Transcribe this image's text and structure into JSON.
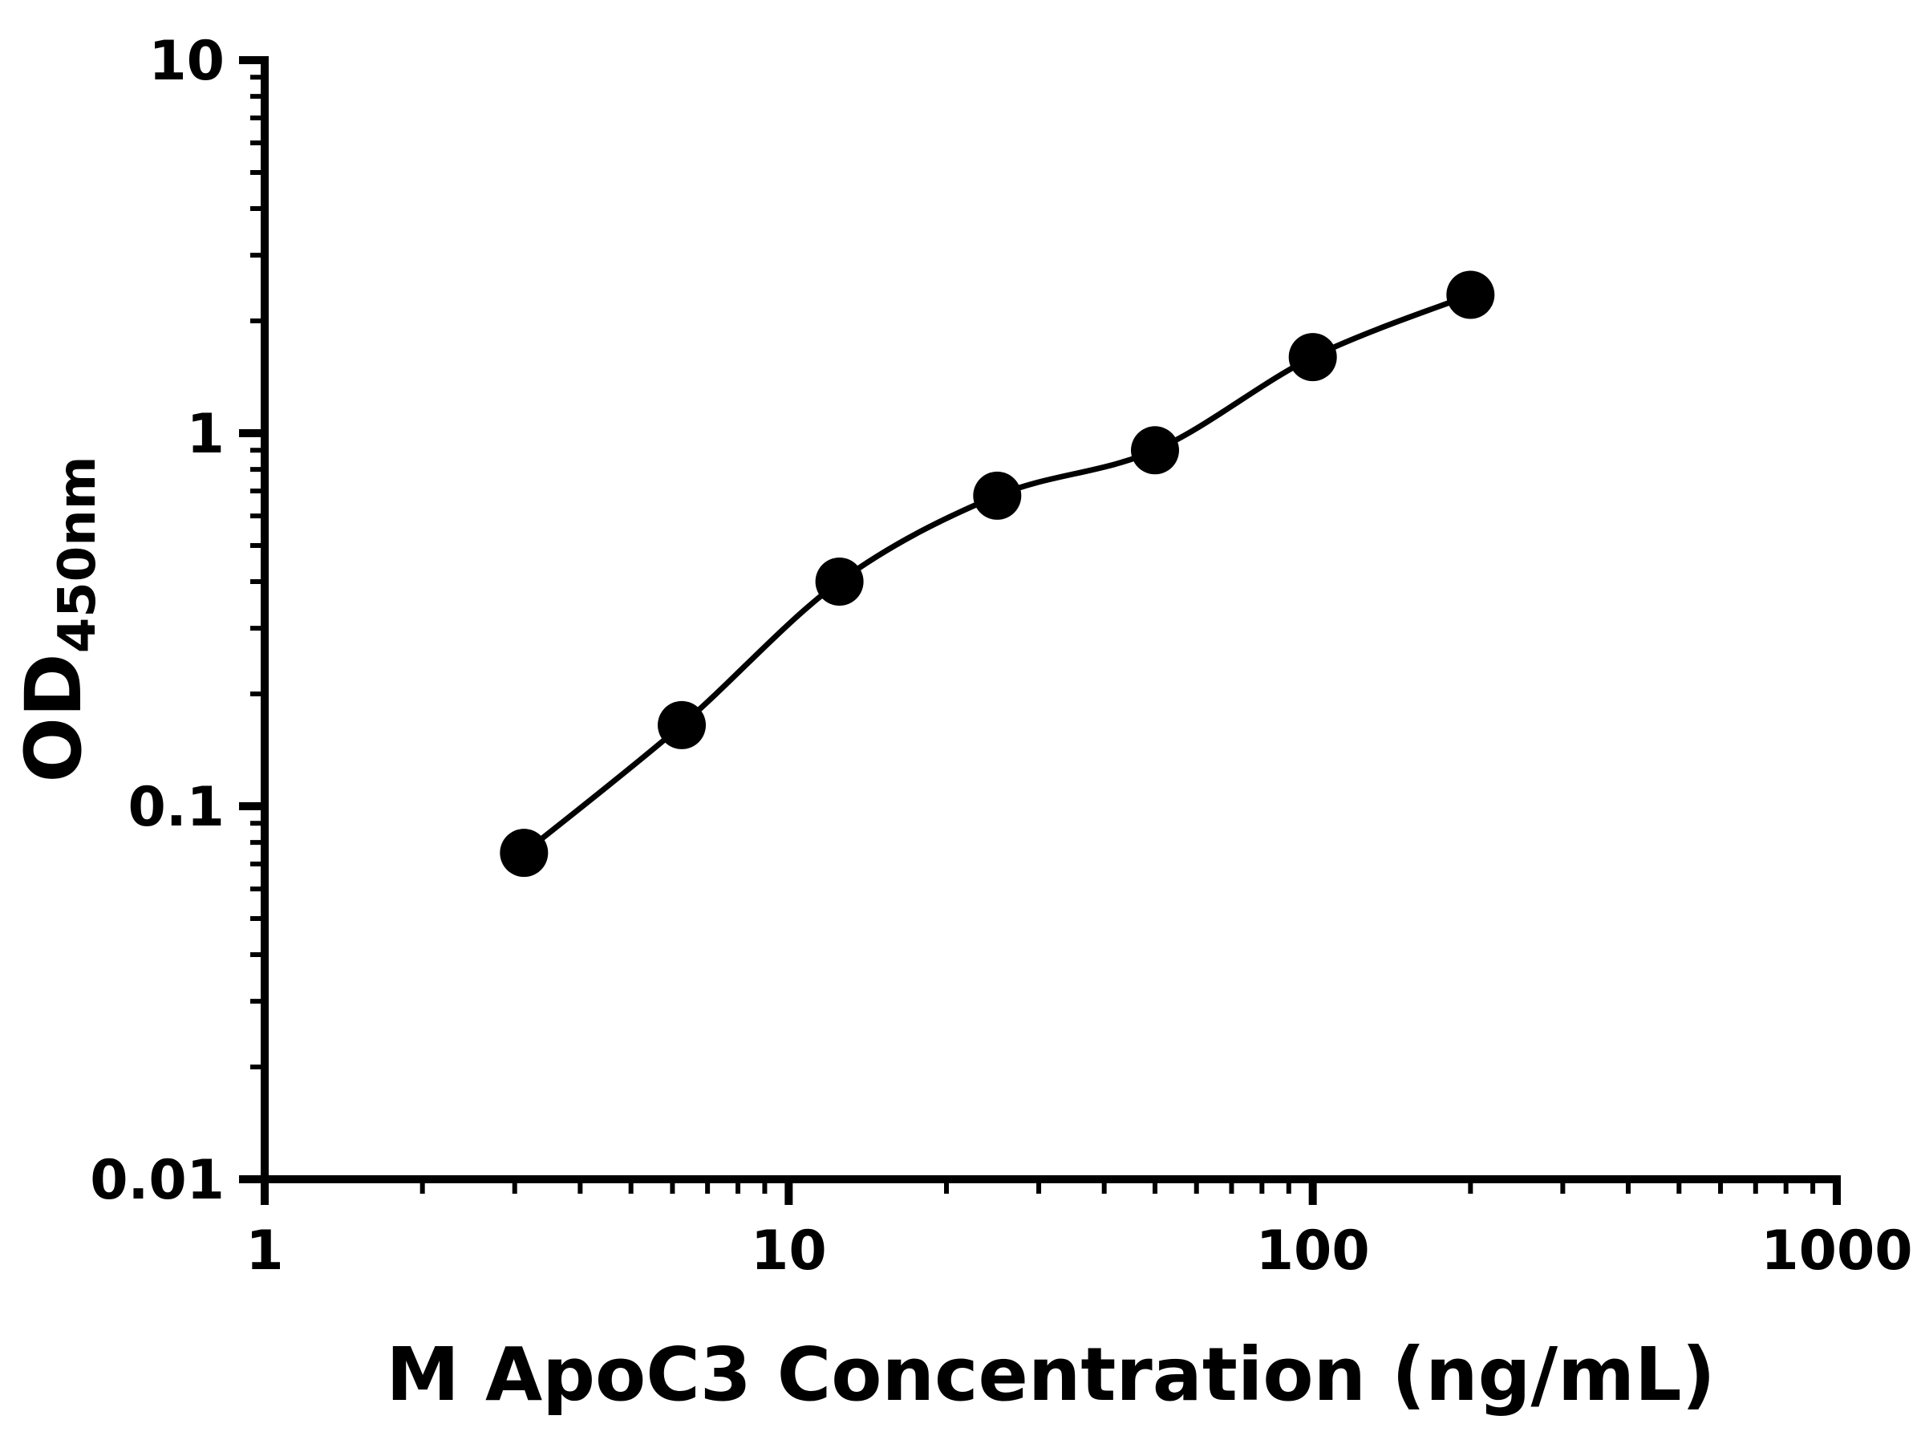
{
  "chart_data": {
    "type": "scatter",
    "title": "",
    "xlabel": "M ApoC3 Concentration (ng/mL)",
    "ylabel_main": "OD",
    "ylabel_sub": "450nm",
    "x_scale": "log",
    "y_scale": "log",
    "xlim": [
      1,
      1000
    ],
    "ylim": [
      0.01,
      10
    ],
    "x_ticks": [
      1,
      10,
      100,
      1000
    ],
    "x_tick_labels": [
      "1",
      "10",
      "100",
      "1000"
    ],
    "y_ticks": [
      0.01,
      0.1,
      1,
      10
    ],
    "y_tick_labels": [
      "0.01",
      "0.1",
      "1",
      "10"
    ],
    "minor_ticks": "log decades 2-9",
    "grid": false,
    "legend": false,
    "marker_color": "#000000",
    "line_color": "#000000",
    "background_color": "#ffffff",
    "series": [
      {
        "name": "standard-curve-points",
        "x": [
          3.125,
          6.25,
          12.5,
          25,
          50,
          100,
          200
        ],
        "y": [
          0.075,
          0.165,
          0.4,
          0.68,
          0.9,
          1.6,
          2.35
        ]
      }
    ],
    "fit_curve": "smooth 4PL-style curve through the points from x=3.125 to x=200"
  }
}
